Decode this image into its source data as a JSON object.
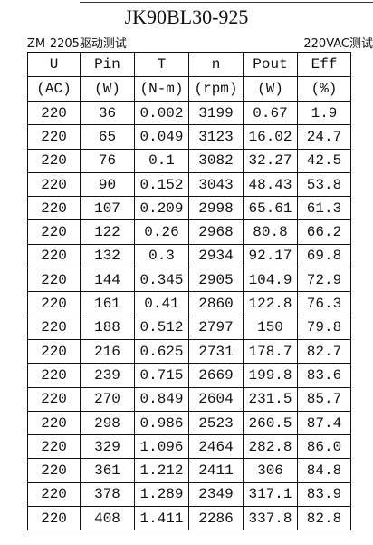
{
  "header": {
    "title": "JK90BL30-925",
    "left_note": "ZM-2205驱动测试",
    "right_note": "220VAC测试"
  },
  "table": {
    "headers": [
      [
        "U",
        "Pin",
        "T",
        "n",
        "Pout",
        "Eff"
      ],
      [
        "(AC)",
        "(W)",
        "(N-m)",
        "(rpm)",
        "(W)",
        "(%)"
      ]
    ],
    "rows": [
      [
        "220",
        "36",
        "0.002",
        "3199",
        "0.67",
        "1.9"
      ],
      [
        "220",
        "65",
        "0.049",
        "3123",
        "16.02",
        "24.7"
      ],
      [
        "220",
        "76",
        "0.1",
        "3082",
        "32.27",
        "42.5"
      ],
      [
        "220",
        "90",
        "0.152",
        "3043",
        "48.43",
        "53.8"
      ],
      [
        "220",
        "107",
        "0.209",
        "2998",
        "65.61",
        "61.3"
      ],
      [
        "220",
        "122",
        "0.26",
        "2968",
        "80.8",
        "66.2"
      ],
      [
        "220",
        "132",
        "0.3",
        "2934",
        "92.17",
        "69.8"
      ],
      [
        "220",
        "144",
        "0.345",
        "2905",
        "104.9",
        "72.9"
      ],
      [
        "220",
        "161",
        "0.41",
        "2860",
        "122.8",
        "76.3"
      ],
      [
        "220",
        "188",
        "0.512",
        "2797",
        "150",
        "79.8"
      ],
      [
        "220",
        "216",
        "0.625",
        "2731",
        "178.7",
        "82.7"
      ],
      [
        "220",
        "239",
        "0.715",
        "2669",
        "199.8",
        "83.6"
      ],
      [
        "220",
        "270",
        "0.849",
        "2604",
        "231.5",
        "85.7"
      ],
      [
        "220",
        "298",
        "0.986",
        "2523",
        "260.5",
        "87.4"
      ],
      [
        "220",
        "329",
        "1.096",
        "2464",
        "282.8",
        "86.0"
      ],
      [
        "220",
        "361",
        "1.212",
        "2411",
        "306",
        "84.8"
      ],
      [
        "220",
        "378",
        "1.289",
        "2349",
        "317.1",
        "83.9"
      ],
      [
        "220",
        "408",
        "1.411",
        "2286",
        "337.8",
        "82.8"
      ]
    ]
  }
}
